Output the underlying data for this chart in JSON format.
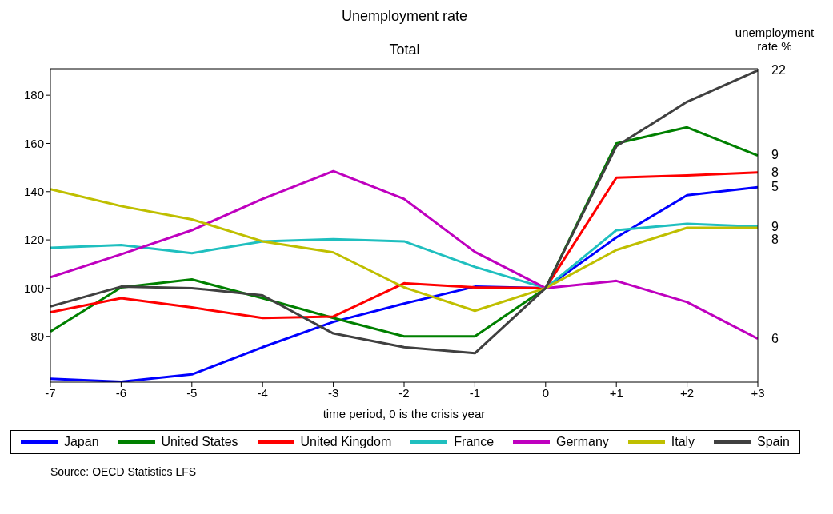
{
  "chart_data": {
    "type": "line",
    "title": "Unemployment rate",
    "subtitle": "Total",
    "xlabel": "time period, 0 is the crisis year",
    "y2label": "unemployment rate %",
    "x": [
      -7,
      -6,
      -5,
      -4,
      -3,
      -2,
      -1,
      0,
      1,
      2,
      3
    ],
    "xlim": [
      -7,
      3
    ],
    "xticks": [
      -7,
      -6,
      -5,
      -4,
      -3,
      -2,
      -1,
      0,
      {
        "value": 1,
        "label": "+1"
      },
      {
        "value": 2,
        "label": "+2"
      },
      {
        "value": 3,
        "label": "+3"
      }
    ],
    "ylim": [
      61,
      191
    ],
    "yticks": [
      80,
      100,
      120,
      140,
      160,
      180
    ],
    "grid": false,
    "legend": "bottom",
    "marker": "none",
    "line_style": "solid",
    "series": [
      {
        "name": "Japan",
        "color": "#0000ff",
        "values": [
          62.4,
          61.2,
          64.2,
          75.5,
          86,
          93.6,
          100.6,
          100,
          121,
          138.5,
          141.8
        ]
      },
      {
        "name": "United States",
        "color": "#008000",
        "values": [
          82,
          100.3,
          103.6,
          95.8,
          87.6,
          80,
          80,
          100,
          160,
          166.7,
          155
        ]
      },
      {
        "name": "United Kingdom",
        "color": "#ff0000",
        "values": [
          90,
          95.8,
          92,
          87.6,
          88.2,
          102,
          100.3,
          100,
          145.8,
          146.7,
          148
        ]
      },
      {
        "name": "France",
        "color": "#1fbfbf",
        "values": [
          116.7,
          117.9,
          114.5,
          119.4,
          120.3,
          119.4,
          108.8,
          100,
          124,
          126.7,
          125.5
        ]
      },
      {
        "name": "Germany",
        "color": "#bf00bf",
        "values": [
          104.5,
          114,
          124,
          137,
          148.5,
          137,
          115,
          100,
          103,
          94.2,
          79
        ]
      },
      {
        "name": "Italy",
        "color": "#bfbf00",
        "values": [
          141,
          134,
          128.5,
          119.4,
          114.8,
          100.3,
          90.6,
          100,
          115.8,
          125,
          125
        ]
      },
      {
        "name": "Spain",
        "color": "#404040",
        "values": [
          92.4,
          100.6,
          100,
          97,
          81.2,
          75.5,
          73,
          100,
          158.8,
          177.3,
          190.3
        ]
      }
    ],
    "annotations": [
      "5",
      "9",
      "8",
      "9",
      "6",
      "8",
      "22",
      "Source: OECD Statistics LFS"
    ]
  }
}
